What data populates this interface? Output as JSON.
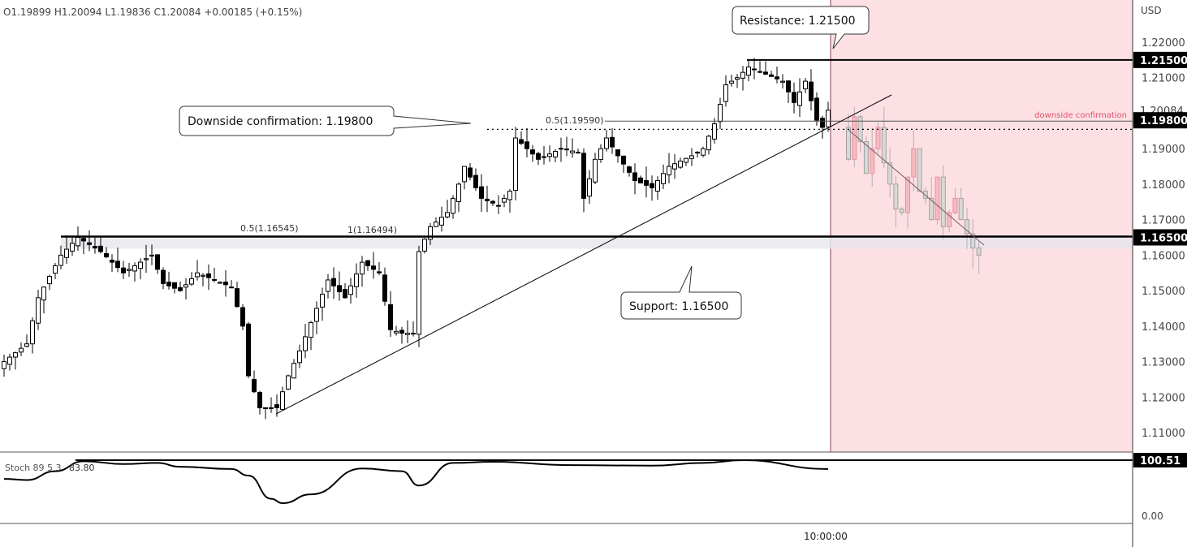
{
  "legend": {
    "ohlc": "O1.19899  H1.20094  L1.19836  C1.20084  +0.00185 (+0.15%)"
  },
  "currency": "USD",
  "time_label": "10:00:00",
  "colors": {
    "zone": "#fde0e4",
    "up": "#ffffff",
    "down": "#000000",
    "future_up": "#d5d9d5",
    "future_down": "#f6b6c0",
    "label_red": "#e0536a"
  },
  "annotations": {
    "resistance": "Resistance: 1.21500",
    "downside": "Downside confirmation: 1.19800",
    "support": "Support: 1.16500",
    "downside_tag": "downside confirmation",
    "fib_upper": "0.5(1.19590)",
    "fib_lower_half": "0.5(1.16545)",
    "fib_lower_one": "1(1.16494)"
  },
  "indicator": {
    "name": "Stoch 89 5 3",
    "value": "83.80",
    "top_label": "100.51",
    "bottom_label": "0.00"
  },
  "chart_data": {
    "type": "candlestick",
    "ylim": [
      1.105,
      1.225
    ],
    "yticks": [
      "1.22000",
      "1.21000",
      "1.19000",
      "1.18000",
      "1.17000",
      "1.16000",
      "1.15000",
      "1.14000",
      "1.13000",
      "1.12000",
      "1.11000"
    ],
    "price_tags": [
      {
        "label": "1.21500",
        "value": 1.215,
        "highlight": true
      },
      {
        "label": "1.20084",
        "value": 1.20084,
        "highlight": false
      },
      {
        "label": "1.19800",
        "value": 1.198,
        "highlight": true
      },
      {
        "label": "1.16500",
        "value": 1.165,
        "highlight": true
      }
    ],
    "close_anchors": [
      [
        0,
        1.13
      ],
      [
        4,
        1.135
      ],
      [
        6,
        1.148
      ],
      [
        10,
        1.16
      ],
      [
        13,
        1.165
      ],
      [
        17,
        1.161
      ],
      [
        21,
        1.155
      ],
      [
        26,
        1.16
      ],
      [
        28,
        1.152
      ],
      [
        31,
        1.15
      ],
      [
        34,
        1.155
      ],
      [
        37,
        1.153
      ],
      [
        40,
        1.151
      ],
      [
        42,
        1.14
      ],
      [
        43,
        1.126
      ],
      [
        45,
        1.117
      ],
      [
        48,
        1.117
      ],
      [
        50,
        1.126
      ],
      [
        52,
        1.133
      ],
      [
        55,
        1.145
      ],
      [
        57,
        1.153
      ],
      [
        60,
        1.148
      ],
      [
        63,
        1.158
      ],
      [
        66,
        1.155
      ],
      [
        68,
        1.139
      ],
      [
        70,
        1.138
      ],
      [
        72,
        1.138
      ],
      [
        73,
        1.161
      ],
      [
        75,
        1.168
      ],
      [
        78,
        1.172
      ],
      [
        80,
        1.18
      ],
      [
        81,
        1.185
      ],
      [
        84,
        1.176
      ],
      [
        87,
        1.174
      ],
      [
        89,
        1.178
      ],
      [
        90,
        1.193
      ],
      [
        92,
        1.19
      ],
      [
        94,
        1.187
      ],
      [
        98,
        1.19
      ],
      [
        101,
        1.189
      ],
      [
        102,
        1.176
      ],
      [
        104,
        1.187
      ],
      [
        106,
        1.193
      ],
      [
        108,
        1.188
      ],
      [
        111,
        1.181
      ],
      [
        114,
        1.179
      ],
      [
        117,
        1.185
      ],
      [
        121,
        1.188
      ],
      [
        123,
        1.19
      ],
      [
        125,
        1.197
      ],
      [
        127,
        1.208
      ],
      [
        129,
        1.21
      ],
      [
        131,
        1.213
      ],
      [
        134,
        1.211
      ],
      [
        137,
        1.209
      ],
      [
        139,
        1.203
      ],
      [
        141,
        1.209
      ],
      [
        143,
        1.198
      ],
      [
        144,
        1.196
      ],
      [
        145,
        1.20084
      ]
    ],
    "projected_closes": [
      1.187,
      1.199,
      1.192,
      1.183,
      1.19,
      1.196,
      1.186,
      1.18,
      1.173,
      1.172,
      1.182,
      1.19,
      1.178,
      1.176,
      1.17,
      1.182,
      1.168,
      1.172,
      1.176,
      1.17,
      1.166,
      1.162,
      1.16
    ],
    "levels": {
      "resistance": 1.215,
      "downside_confirmation": 1.198,
      "support": 1.165,
      "fib_upper": 1.1959
    },
    "stoch": [
      [
        0,
        66
      ],
      [
        4,
        64
      ],
      [
        9,
        80
      ],
      [
        14,
        98
      ],
      [
        21,
        93
      ],
      [
        27,
        95
      ],
      [
        31,
        88
      ],
      [
        40,
        84
      ],
      [
        43,
        72
      ],
      [
        47,
        30
      ],
      [
        49,
        22
      ],
      [
        54,
        38
      ],
      [
        63,
        85
      ],
      [
        70,
        80
      ],
      [
        73,
        54
      ],
      [
        79,
        95
      ],
      [
        86,
        97
      ],
      [
        100,
        91
      ],
      [
        114,
        90
      ],
      [
        123,
        95
      ],
      [
        130,
        100
      ],
      [
        145,
        84
      ]
    ],
    "stoch_range": [
      0,
      100.51
    ]
  }
}
